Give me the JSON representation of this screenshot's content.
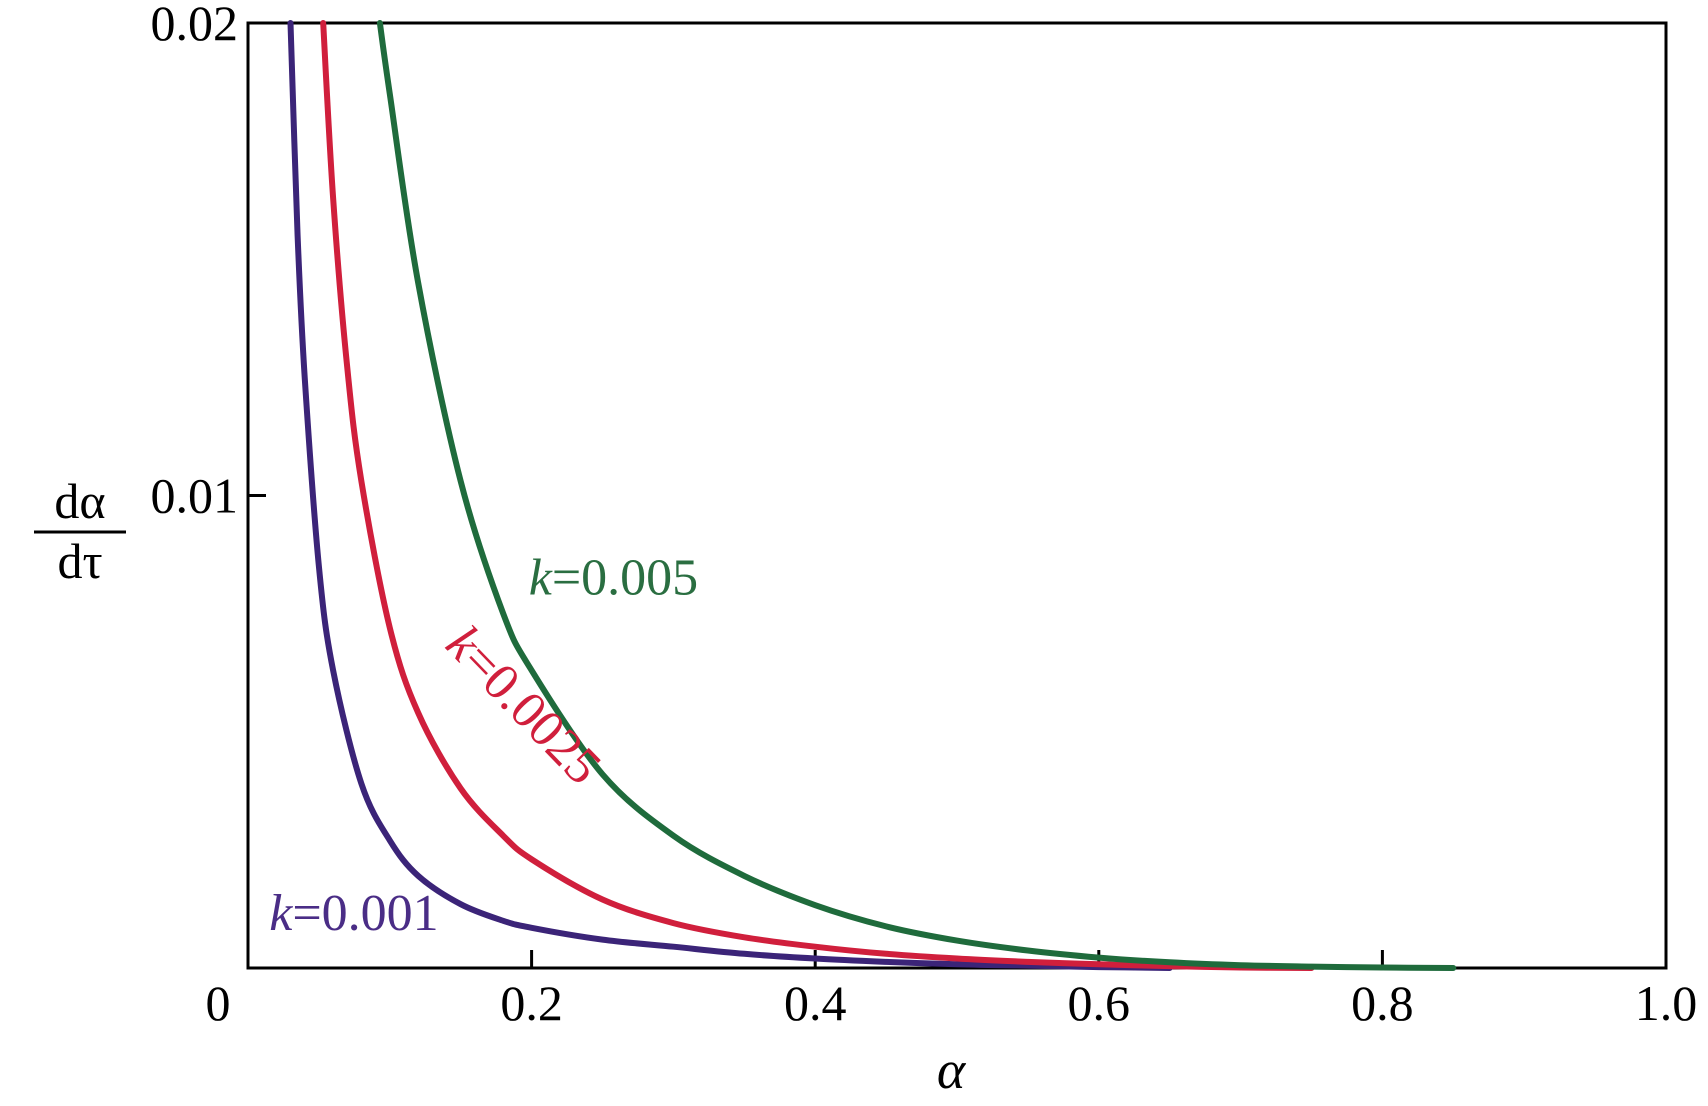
{
  "chart_data": {
    "type": "line",
    "title": "",
    "xlabel": "α",
    "ylabel": {
      "numerator": "dα",
      "denominator": "dτ"
    },
    "xlim": [
      0,
      1.0
    ],
    "ylim": [
      0,
      0.02
    ],
    "xticks": [
      {
        "value": 0,
        "label": "0"
      },
      {
        "value": 0.2,
        "label": "0.2"
      },
      {
        "value": 0.4,
        "label": "0.4"
      },
      {
        "value": 0.6,
        "label": "0.6"
      },
      {
        "value": 0.8,
        "label": "0.8"
      },
      {
        "value": 1.0,
        "label": "1.0"
      }
    ],
    "yticks": [
      {
        "value": 0.01,
        "label": "0.01"
      },
      {
        "value": 0.02,
        "label": "0.02"
      }
    ],
    "grid": false,
    "legend": "none",
    "series": [
      {
        "name": "k=0.001",
        "color": "#3b2478",
        "label_color": "#4a2d86",
        "x": [
          0.03,
          0.035,
          0.04,
          0.05,
          0.06,
          0.08,
          0.1,
          0.12,
          0.15,
          0.18,
          0.2,
          0.25,
          0.3,
          0.35,
          0.4,
          0.45,
          0.5,
          0.55,
          0.6,
          0.65
        ],
        "y": [
          0.02,
          0.0155,
          0.0125,
          0.0085,
          0.0063,
          0.0039,
          0.0027,
          0.00195,
          0.00135,
          0.001,
          0.00085,
          0.0006,
          0.00045,
          0.0003,
          0.0002,
          0.00013,
          8e-05,
          5e-05,
          2e-05,
          0.0
        ]
      },
      {
        "name": "k=0.0025",
        "color": "#d01f3c",
        "label_color": "#d01f3c",
        "x": [
          0.053,
          0.06,
          0.07,
          0.08,
          0.1,
          0.12,
          0.15,
          0.18,
          0.2,
          0.25,
          0.3,
          0.35,
          0.4,
          0.45,
          0.5,
          0.55,
          0.6,
          0.65,
          0.7,
          0.75
        ],
        "y": [
          0.02,
          0.0163,
          0.0127,
          0.0103,
          0.0072,
          0.0054,
          0.0038,
          0.0028,
          0.0023,
          0.00145,
          0.00095,
          0.00065,
          0.00045,
          0.0003,
          0.0002,
          0.00013,
          8e-05,
          4e-05,
          1e-05,
          0.0
        ]
      },
      {
        "name": "k=0.005",
        "color": "#1f6b3c",
        "label_color": "#2a6e41",
        "x": [
          0.093,
          0.1,
          0.12,
          0.15,
          0.18,
          0.2,
          0.25,
          0.3,
          0.35,
          0.4,
          0.45,
          0.5,
          0.55,
          0.6,
          0.65,
          0.7,
          0.75,
          0.8,
          0.85
        ],
        "y": [
          0.02,
          0.0185,
          0.0145,
          0.0103,
          0.0075,
          0.0063,
          0.0041,
          0.0028,
          0.00195,
          0.00133,
          0.00088,
          0.00058,
          0.00037,
          0.00022,
          0.00012,
          6e-05,
          3e-05,
          1e-05,
          0.0
        ]
      }
    ],
    "annotations": [
      {
        "series": "k=0.005",
        "var": "k",
        "text": "=0.005",
        "x": 0.198,
        "y": 0.0079,
        "rotate": 0
      },
      {
        "series": "k=0.0025",
        "var": "k",
        "text": "=0.0025",
        "x": 0.138,
        "y": 0.0068,
        "rotate": 46
      },
      {
        "series": "k=0.001",
        "var": "k",
        "text": "=0.001",
        "x": 0.015,
        "y": 0.0008,
        "rotate": 0
      }
    ]
  }
}
